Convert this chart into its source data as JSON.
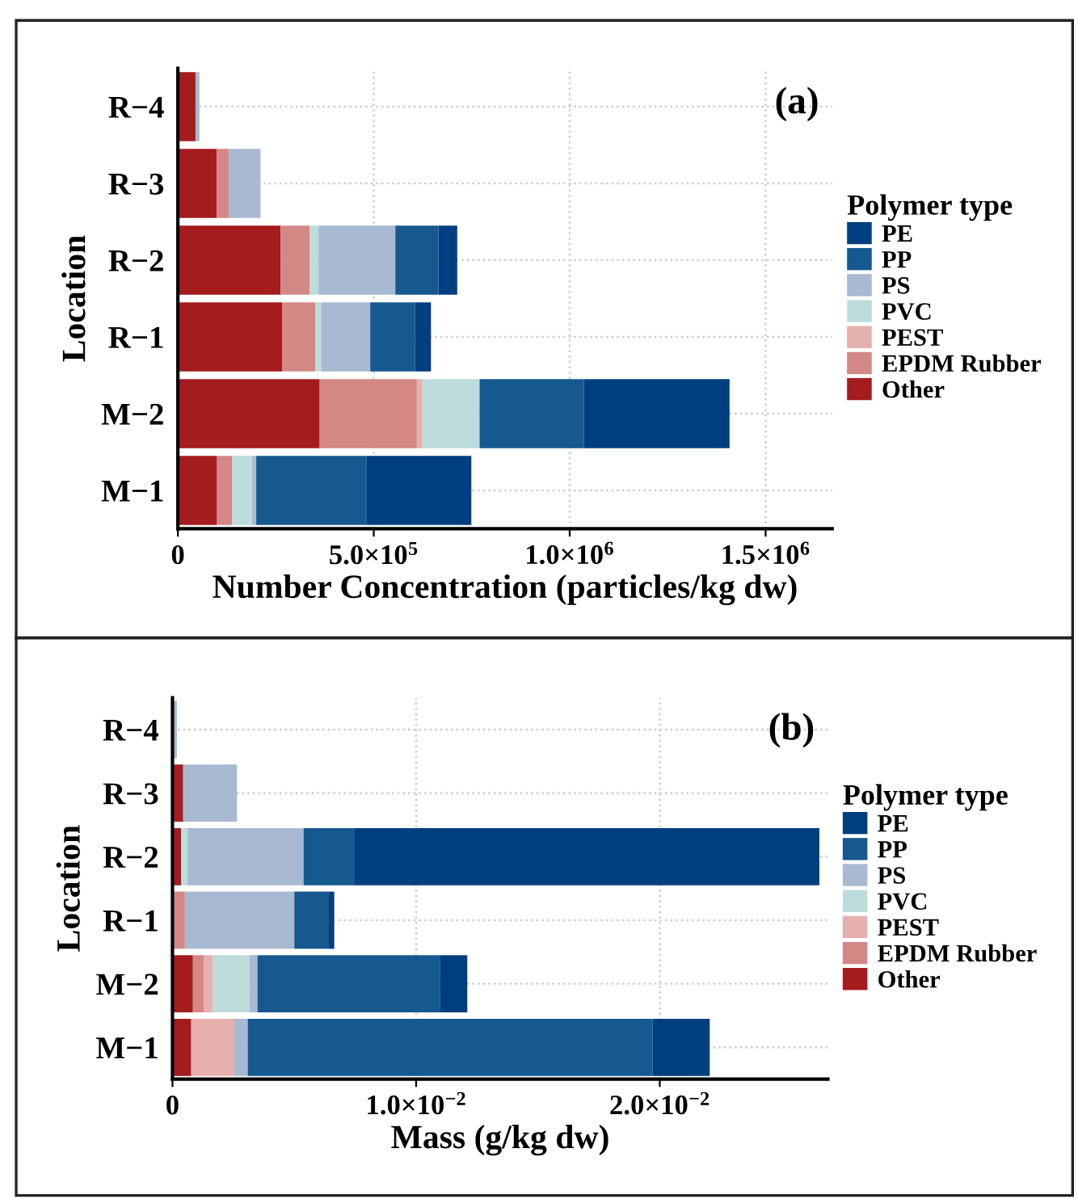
{
  "chart_data": [
    {
      "type": "bar",
      "orientation": "horizontal",
      "stacked": true,
      "annotations": [
        "(a)"
      ],
      "xlabel": "Number Concentration (particles/kg dw)",
      "ylabel": "Location",
      "legend_title": "Polymer type",
      "legend": "right",
      "grid": true,
      "categories": [
        "R−4",
        "R−3",
        "R−2",
        "R−1",
        "M−2",
        "M−1"
      ],
      "xlim": [
        0,
        1670000
      ],
      "xticks": [
        0,
        {
          "value": 500000,
          "label": "5.0×10$^{5}$"
        },
        {
          "value": 1000000,
          "label": "1.0×10$^{6}$"
        },
        {
          "value": 1500000,
          "label": "1.5×10$^{6}$"
        }
      ],
      "series": [
        {
          "name": "Other",
          "color": "#a51c1e",
          "values": [
            45000,
            99000,
            262000,
            266000,
            362000,
            100000
          ]
        },
        {
          "name": "EPDM Rubber",
          "color": "#d48886",
          "values": [
            0,
            32000,
            74000,
            85000,
            248000,
            39000
          ]
        },
        {
          "name": "PEST",
          "color": "#e6b0ae",
          "values": [
            0,
            0,
            0,
            0,
            14000,
            0
          ]
        },
        {
          "name": "PVC",
          "color": "#bddcdb",
          "values": [
            0,
            0,
            23000,
            15000,
            146000,
            50000
          ]
        },
        {
          "name": "PS",
          "color": "#a8b9d2",
          "values": [
            10000,
            80000,
            196000,
            125000,
            0,
            11000
          ]
        },
        {
          "name": "PP",
          "color": "#15598f",
          "values": [
            0,
            0,
            110000,
            114000,
            266000,
            282000
          ]
        },
        {
          "name": "PE",
          "color": "#003f7f",
          "values": [
            0,
            0,
            48000,
            41000,
            372000,
            267000
          ]
        }
      ]
    },
    {
      "type": "bar",
      "orientation": "horizontal",
      "stacked": true,
      "annotations": [
        "(b)"
      ],
      "xlabel": "Mass (g/kg dw)",
      "ylabel": "Location",
      "legend_title": "Polymer type",
      "legend": "right",
      "grid": true,
      "categories": [
        "R−4",
        "R−3",
        "R−2",
        "R−1",
        "M−2",
        "M−1"
      ],
      "xlim": [
        0,
        0.0269
      ],
      "xticks": [
        0,
        {
          "value": 0.01,
          "label": "1.0×10$^{−2}$"
        },
        {
          "value": 0.02,
          "label": "2.0×10$^{−2}$"
        }
      ],
      "series": [
        {
          "name": "Other",
          "color": "#a51c1e",
          "values": [
            0,
            0.00044,
            0.00035,
            0,
            0.00084,
            0.00077
          ]
        },
        {
          "name": "EPDM Rubber",
          "color": "#d48886",
          "values": [
            0,
            0,
            0,
            0.00051,
            0.00044,
            0
          ]
        },
        {
          "name": "PEST",
          "color": "#e6b0ae",
          "values": [
            0,
            0,
            0,
            0,
            0.00038,
            0.00177
          ]
        },
        {
          "name": "PVC",
          "color": "#bddcdb",
          "values": [
            0,
            0,
            0.00027,
            0,
            0.0015,
            0
          ]
        },
        {
          "name": "PS",
          "color": "#a8b9d2",
          "values": [
            0.00018,
            0.00221,
            0.00476,
            0.00449,
            0.00033,
            0.00055
          ]
        },
        {
          "name": "PP",
          "color": "#15598f",
          "values": [
            0,
            0,
            0.0021,
            0.00142,
            0.00748,
            0.01661
          ]
        },
        {
          "name": "PE",
          "color": "#003f7f",
          "values": [
            0,
            0,
            0.01907,
            0.00022,
            0.00113,
            0.00235
          ]
        }
      ]
    }
  ]
}
